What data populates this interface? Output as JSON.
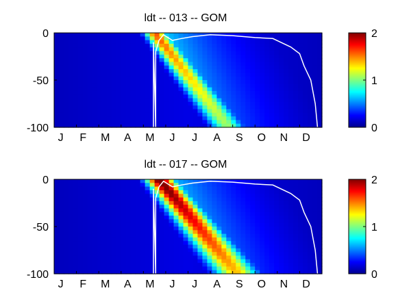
{
  "chart_data": [
    {
      "type": "heatmap",
      "title": "ldt -- 013 -- GOM",
      "x_tick_labels": [
        "J",
        "F",
        "M",
        "A",
        "M",
        "J",
        "J",
        "A",
        "S",
        "O",
        "N",
        "D"
      ],
      "y_ticks": [
        "0",
        "-50",
        "-100"
      ],
      "ylim": [
        -100,
        0
      ],
      "colorbar": {
        "ticks": [
          "0",
          "1",
          "2"
        ],
        "range": [
          0,
          2
        ],
        "colormap": "jet"
      },
      "peak": {
        "max_value": 1.6,
        "ridge_start_month": 4.5,
        "ridge_end_month": 7.8,
        "ridge_width_months": 0.35
      },
      "mixed_layer_line": [
        {
          "month": 4.45,
          "depth": -100
        },
        {
          "month": 4.45,
          "depth": -10
        },
        {
          "month": 4.55,
          "depth": -100
        },
        {
          "month": 4.55,
          "depth": -20
        },
        {
          "month": 4.7,
          "depth": -8
        },
        {
          "month": 4.9,
          "depth": -2
        },
        {
          "month": 5.3,
          "depth": -8
        },
        {
          "month": 5.7,
          "depth": -6
        },
        {
          "month": 6.2,
          "depth": -4
        },
        {
          "month": 7.0,
          "depth": -2
        },
        {
          "month": 8.0,
          "depth": -3
        },
        {
          "month": 9.0,
          "depth": -5
        },
        {
          "month": 9.8,
          "depth": -6
        },
        {
          "month": 10.6,
          "depth": -15
        },
        {
          "month": 11.0,
          "depth": -22
        },
        {
          "month": 11.2,
          "depth": -35
        },
        {
          "month": 11.5,
          "depth": -50
        },
        {
          "month": 11.7,
          "depth": -75
        },
        {
          "month": 11.8,
          "depth": -100
        }
      ]
    },
    {
      "type": "heatmap",
      "title": "ldt -- 017 -- GOM",
      "x_tick_labels": [
        "J",
        "F",
        "M",
        "A",
        "M",
        "J",
        "J",
        "A",
        "S",
        "O",
        "N",
        "D"
      ],
      "y_ticks": [
        "0",
        "-50",
        "-100"
      ],
      "ylim": [
        -100,
        0
      ],
      "colorbar": {
        "ticks": [
          "0",
          "1",
          "2"
        ],
        "range": [
          0,
          2
        ],
        "colormap": "jet"
      },
      "peak": {
        "max_value": 2.1,
        "ridge_start_month": 4.7,
        "ridge_end_month": 8.2,
        "ridge_width_months": 0.45
      },
      "mixed_layer_line": [
        {
          "month": 4.45,
          "depth": -100
        },
        {
          "month": 4.45,
          "depth": -10
        },
        {
          "month": 4.55,
          "depth": -100
        },
        {
          "month": 4.55,
          "depth": -20
        },
        {
          "month": 4.7,
          "depth": -8
        },
        {
          "month": 4.9,
          "depth": -2
        },
        {
          "month": 5.3,
          "depth": -8
        },
        {
          "month": 5.7,
          "depth": -6
        },
        {
          "month": 6.2,
          "depth": -4
        },
        {
          "month": 7.0,
          "depth": -2
        },
        {
          "month": 8.0,
          "depth": -3
        },
        {
          "month": 9.0,
          "depth": -5
        },
        {
          "month": 9.8,
          "depth": -6
        },
        {
          "month": 10.6,
          "depth": -15
        },
        {
          "month": 11.0,
          "depth": -22
        },
        {
          "month": 11.2,
          "depth": -35
        },
        {
          "month": 11.5,
          "depth": -50
        },
        {
          "month": 11.7,
          "depth": -75
        },
        {
          "month": 11.8,
          "depth": -100
        }
      ]
    }
  ]
}
